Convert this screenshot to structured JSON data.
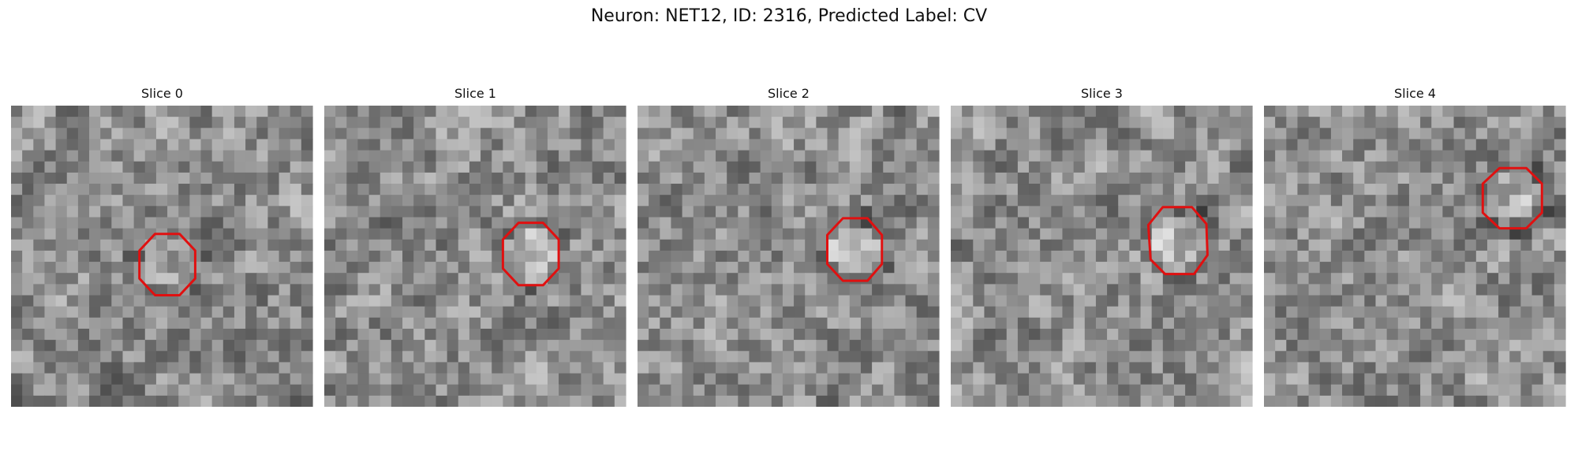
{
  "figure": {
    "title": "Neuron: NET12, ID: 2316, Predicted Label: CV",
    "contour_color": "#e01010"
  },
  "panels": [
    {
      "title": "Slice 0",
      "outline": [
        [
          12.9,
          11.5
        ],
        [
          15.1,
          11.5
        ],
        [
          16.5,
          13.0
        ],
        [
          16.5,
          15.5
        ],
        [
          15.1,
          17.0
        ],
        [
          12.9,
          17.0
        ],
        [
          11.5,
          15.5
        ],
        [
          11.5,
          13.0
        ]
      ]
    },
    {
      "title": "Slice 1",
      "outline": [
        [
          17.4,
          10.5
        ],
        [
          19.6,
          10.5
        ],
        [
          21.0,
          12.0
        ],
        [
          21.0,
          14.6
        ],
        [
          19.6,
          16.1
        ],
        [
          17.4,
          16.1
        ],
        [
          16.0,
          14.6
        ],
        [
          16.0,
          12.0
        ]
      ]
    },
    {
      "title": "Slice 2",
      "outline": [
        [
          18.4,
          10.1
        ],
        [
          20.6,
          10.1
        ],
        [
          21.9,
          11.6
        ],
        [
          21.9,
          14.2
        ],
        [
          20.6,
          15.7
        ],
        [
          18.4,
          15.7
        ],
        [
          17.0,
          14.2
        ],
        [
          17.0,
          11.6
        ]
      ]
    },
    {
      "title": "Slice 3",
      "outline": [
        [
          19.0,
          9.1
        ],
        [
          21.6,
          9.1
        ],
        [
          22.9,
          10.6
        ],
        [
          23.0,
          13.4
        ],
        [
          21.8,
          15.1
        ],
        [
          19.2,
          15.1
        ],
        [
          17.9,
          13.8
        ],
        [
          17.7,
          10.7
        ]
      ]
    },
    {
      "title": "Slice 4",
      "outline": [
        [
          21.1,
          5.6
        ],
        [
          23.5,
          5.6
        ],
        [
          24.9,
          7.0
        ],
        [
          24.9,
          9.6
        ],
        [
          23.5,
          11.0
        ],
        [
          21.1,
          11.0
        ],
        [
          19.6,
          9.6
        ],
        [
          19.6,
          7.0
        ]
      ]
    }
  ]
}
